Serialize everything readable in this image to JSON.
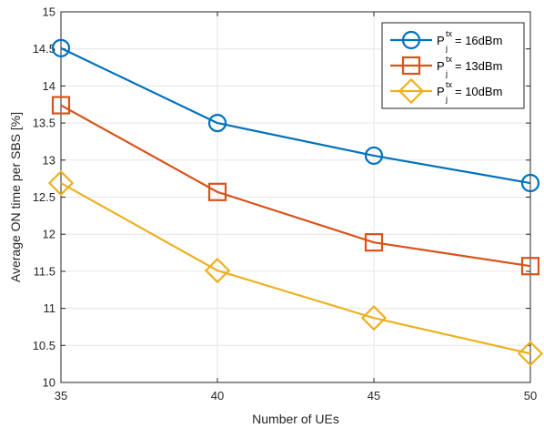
{
  "chart_data": {
    "type": "line",
    "title": "",
    "xlabel": "Number of UEs",
    "ylabel": "Average ON time per SBS [%]",
    "x": [
      35,
      40,
      45,
      50
    ],
    "xlim": [
      35,
      50
    ],
    "ylim": [
      10,
      15
    ],
    "xticks": [
      "35",
      "40",
      "45",
      "50"
    ],
    "yticks": [
      "10",
      "10.5",
      "11",
      "11.5",
      "12",
      "12.5",
      "13",
      "13.5",
      "14",
      "14.5",
      "15"
    ],
    "grid": true,
    "legend_position": "top-right",
    "series": [
      {
        "name_base": "P",
        "name_sub": "j",
        "name_sup": "tx",
        "name_suffix": " = 16dBm",
        "values": [
          14.51,
          13.5,
          13.06,
          12.69
        ],
        "color": "#0072BD",
        "marker": "circle"
      },
      {
        "name_base": "P",
        "name_sub": "j",
        "name_sup": "tx",
        "name_suffix": " = 13dBm",
        "values": [
          13.74,
          12.57,
          11.89,
          11.57
        ],
        "color": "#D95319",
        "marker": "square"
      },
      {
        "name_base": "P",
        "name_sub": "j",
        "name_sup": "tx",
        "name_suffix": " = 10dBm",
        "values": [
          12.69,
          11.51,
          10.87,
          10.39
        ],
        "color": "#EDB120",
        "marker": "diamond"
      }
    ]
  }
}
